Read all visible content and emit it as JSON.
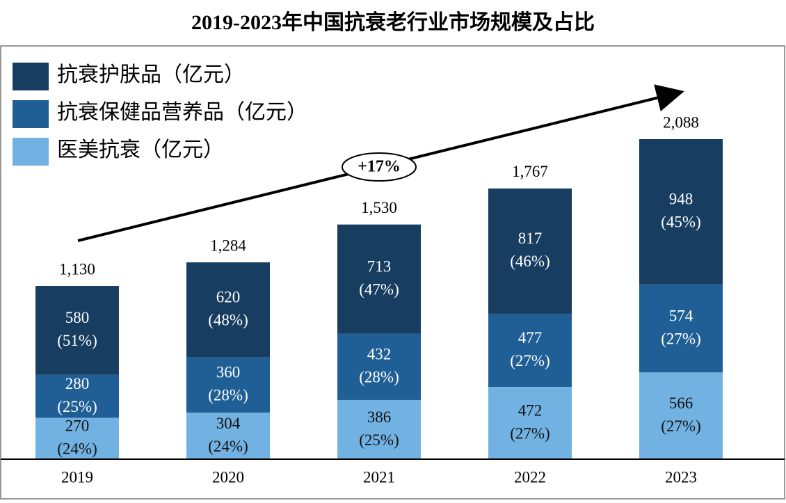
{
  "chart_data": {
    "type": "stacked-bar",
    "title": "2019-2023年中国抗衰老行业市场规模及占比",
    "categories": [
      "2019",
      "2020",
      "2021",
      "2022",
      "2023"
    ],
    "series": [
      {
        "name": "医美抗衰（亿元）",
        "color": "#72b2e3",
        "label_color": "#111111",
        "values": [
          270,
          304,
          386,
          472,
          566
        ],
        "shares": [
          24,
          24,
          25,
          27,
          27
        ],
        "share_labels": [
          "(24%)",
          "(24%)",
          "(25%)",
          "(27%)",
          "(27%)"
        ]
      },
      {
        "name": "抗衰保健品营养品（亿元）",
        "color": "#1f5f96",
        "label_color": "#ffffff",
        "values": [
          280,
          360,
          432,
          477,
          574
        ],
        "shares": [
          25,
          28,
          28,
          27,
          27
        ],
        "share_labels": [
          "(25%)",
          "(28%)",
          "(28%)",
          "(27%)",
          "(27%)"
        ]
      },
      {
        "name": "抗衰护肤品（亿元）",
        "color": "#173d60",
        "label_color": "#ffffff",
        "values": [
          580,
          620,
          713,
          817,
          948
        ],
        "shares": [
          51,
          48,
          47,
          46,
          45
        ],
        "share_labels": [
          "(51%)",
          "(48%)",
          "(47%)",
          "(46%)",
          "(45%)"
        ]
      }
    ],
    "totals": [
      1130,
      1284,
      1530,
      1767,
      2088
    ],
    "total_labels": [
      "1,130",
      "1,284",
      "1,530",
      "1,767",
      "2,088"
    ],
    "annotation": "+17%"
  }
}
